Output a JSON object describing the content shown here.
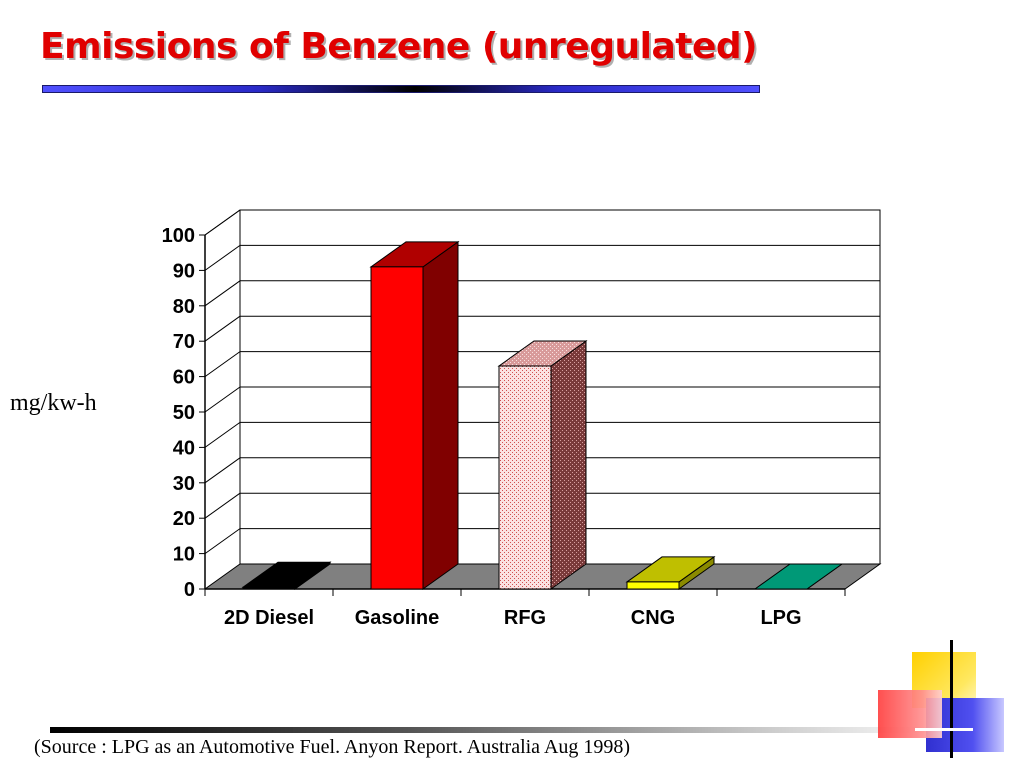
{
  "slide": {
    "title": "Emissions of Benzene (unregulated)",
    "source": "(Source : LPG as an Automotive Fuel. Anyon Report. Australia Aug 1998)"
  },
  "colors": {
    "title": "#e00000",
    "floor": "#808080",
    "bars": {
      "2D Diesel": "#000000",
      "Gasoline": "#ff0000",
      "RFG": "#f4c6c6",
      "CNG": "#ffff00",
      "LPG": "#009977"
    }
  },
  "chart_data": {
    "type": "bar",
    "title": "",
    "xlabel": "",
    "ylabel": "mg/kw-h",
    "categories": [
      "2D Diesel",
      "Gasoline",
      "RFG",
      "CNG",
      "LPG"
    ],
    "values": [
      0.5,
      91,
      63,
      2,
      0
    ],
    "ylim": [
      0,
      100
    ],
    "yticks": [
      0,
      10,
      20,
      30,
      40,
      50,
      60,
      70,
      80,
      90,
      100
    ],
    "grid": true,
    "legend": "none",
    "style": "3d"
  }
}
